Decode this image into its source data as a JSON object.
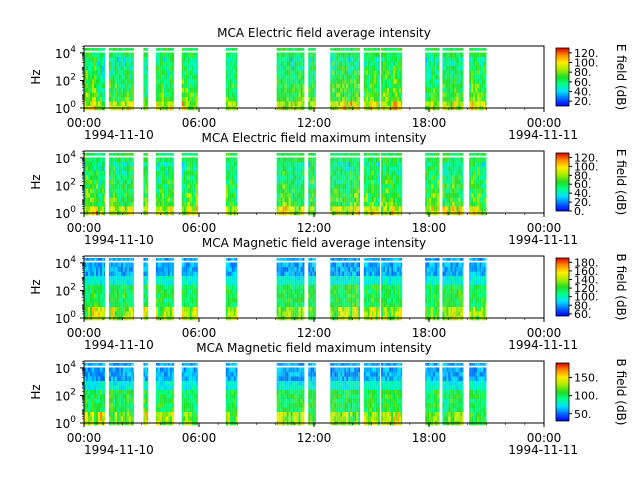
{
  "chart_data": [
    {
      "type": "heatmap",
      "title": "MCA  Electric field average intensity",
      "ylabel": "Hz",
      "ylim_log10": [
        0,
        4.5
      ],
      "y_ticks": [
        {
          "exp": "0",
          "label": "10"
        },
        {
          "exp": "2",
          "label": "10"
        },
        {
          "exp": "4",
          "label": "10"
        }
      ],
      "x_ticks": [
        "00:00",
        "06:00",
        "12:00",
        "18:00",
        "00:00"
      ],
      "x_ticks_hours": [
        0,
        6,
        12,
        18,
        24
      ],
      "start_date": "1994-11-10",
      "end_date": "1994-11-11",
      "colorbar": {
        "label": "E field (dB)",
        "range": [
          10,
          130
        ],
        "ticks": [
          "20.",
          "40.",
          "60.",
          "80.",
          "100.",
          "120."
        ],
        "tick_values": [
          20,
          40,
          60,
          80,
          100,
          120
        ]
      },
      "data_segments_hours": [
        [
          0.0,
          1.1
        ],
        [
          1.3,
          2.6
        ],
        [
          3.1,
          3.35
        ],
        [
          3.75,
          4.7
        ],
        [
          5.1,
          5.95
        ],
        [
          7.4,
          8.0
        ],
        [
          10.05,
          11.5
        ],
        [
          11.7,
          12.1
        ],
        [
          12.85,
          14.4
        ],
        [
          14.6,
          15.45
        ],
        [
          15.5,
          16.6
        ],
        [
          17.8,
          18.55
        ],
        [
          18.7,
          19.8
        ],
        [
          20.1,
          21.0
        ]
      ]
    },
    {
      "type": "heatmap",
      "title": "MCA  Electric field maximum intensity",
      "ylabel": "Hz",
      "ylim_log10": [
        0,
        4.5
      ],
      "y_ticks": [
        {
          "exp": "0",
          "label": "10"
        },
        {
          "exp": "2",
          "label": "10"
        },
        {
          "exp": "4",
          "label": "10"
        }
      ],
      "x_ticks": [
        "00:00",
        "06:00",
        "12:00",
        "18:00",
        "00:00"
      ],
      "x_ticks_hours": [
        0,
        6,
        12,
        18,
        24
      ],
      "start_date": "1994-11-10",
      "end_date": "1994-11-11",
      "colorbar": {
        "label": "E field (dB)",
        "range": [
          0,
          130
        ],
        "ticks": [
          "0.",
          "20.",
          "40.",
          "60.",
          "80.",
          "100.",
          "120."
        ],
        "tick_values": [
          0,
          20,
          40,
          60,
          80,
          100,
          120
        ]
      },
      "data_segments_hours": [
        [
          0.0,
          1.1
        ],
        [
          1.3,
          2.6
        ],
        [
          3.1,
          3.35
        ],
        [
          3.75,
          4.7
        ],
        [
          5.1,
          5.95
        ],
        [
          7.4,
          8.0
        ],
        [
          10.05,
          11.5
        ],
        [
          11.7,
          12.1
        ],
        [
          12.85,
          14.4
        ],
        [
          14.6,
          15.45
        ],
        [
          15.5,
          16.6
        ],
        [
          17.8,
          18.55
        ],
        [
          18.7,
          19.8
        ],
        [
          20.1,
          21.0
        ]
      ]
    },
    {
      "type": "heatmap",
      "title": "MCA  Magnetic field average intensity",
      "ylabel": "Hz",
      "ylim_log10": [
        0,
        4.5
      ],
      "y_ticks": [
        {
          "exp": "0",
          "label": "10"
        },
        {
          "exp": "2",
          "label": "10"
        },
        {
          "exp": "4",
          "label": "10"
        }
      ],
      "x_ticks": [
        "00:00",
        "06:00",
        "12:00",
        "18:00",
        "00:00"
      ],
      "x_ticks_hours": [
        0,
        6,
        12,
        18,
        24
      ],
      "start_date": "1994-11-10",
      "end_date": "1994-11-11",
      "colorbar": {
        "label": "B field (dB)",
        "range": [
          55,
          190
        ],
        "ticks": [
          "60.",
          "80.",
          "100.",
          "120.",
          "140.",
          "160.",
          "180."
        ],
        "tick_values": [
          60,
          80,
          100,
          120,
          140,
          160,
          180
        ]
      },
      "data_segments_hours": [
        [
          0.0,
          1.1
        ],
        [
          1.3,
          2.6
        ],
        [
          3.1,
          3.35
        ],
        [
          3.75,
          4.7
        ],
        [
          5.1,
          5.95
        ],
        [
          7.4,
          8.0
        ],
        [
          10.05,
          11.5
        ],
        [
          11.7,
          12.1
        ],
        [
          12.85,
          14.4
        ],
        [
          14.6,
          15.45
        ],
        [
          15.5,
          16.6
        ],
        [
          17.8,
          18.55
        ],
        [
          18.7,
          19.8
        ],
        [
          20.1,
          21.0
        ]
      ]
    },
    {
      "type": "heatmap",
      "title": "MCA  Magnetic field maximum intensity",
      "ylabel": "Hz",
      "ylim_log10": [
        0,
        4.5
      ],
      "y_ticks": [
        {
          "exp": "0",
          "label": "10"
        },
        {
          "exp": "2",
          "label": "10"
        },
        {
          "exp": "4",
          "label": "10"
        }
      ],
      "x_ticks": [
        "00:00",
        "06:00",
        "12:00",
        "18:00",
        "00:00"
      ],
      "x_ticks_hours": [
        0,
        6,
        12,
        18,
        24
      ],
      "start_date": "1994-11-10",
      "end_date": "1994-11-11",
      "colorbar": {
        "label": "B field (dB)",
        "range": [
          30,
          190
        ],
        "ticks": [
          "50.",
          "100.",
          "150."
        ],
        "tick_values": [
          50,
          100,
          150
        ]
      },
      "data_segments_hours": [
        [
          0.0,
          1.1
        ],
        [
          1.3,
          2.6
        ],
        [
          3.1,
          3.35
        ],
        [
          3.75,
          4.7
        ],
        [
          5.1,
          5.95
        ],
        [
          7.4,
          8.0
        ],
        [
          10.05,
          11.5
        ],
        [
          11.7,
          12.1
        ],
        [
          12.85,
          14.4
        ],
        [
          14.6,
          15.45
        ],
        [
          15.5,
          16.6
        ],
        [
          17.8,
          18.55
        ],
        [
          18.7,
          19.8
        ],
        [
          20.1,
          21.0
        ]
      ]
    }
  ]
}
